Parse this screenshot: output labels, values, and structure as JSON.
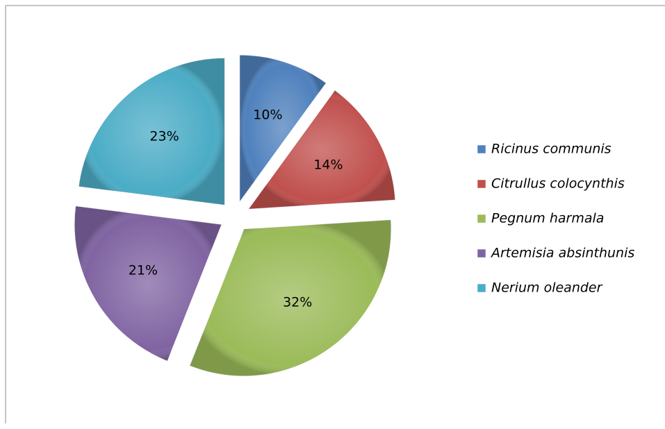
{
  "chart_data": {
    "type": "pie",
    "categories": [
      "Ricinus communis",
      "Citrullus colocynthis",
      "Pegnum harmala",
      "Artemisia absinthunis",
      "Nerium oleander"
    ],
    "values": [
      10,
      14,
      32,
      21,
      23
    ],
    "value_labels": [
      "10%",
      "14%",
      "32%",
      "21%",
      "23%"
    ],
    "colors": [
      "#4f81bd",
      "#c0504d",
      "#9bbb59",
      "#8064a2",
      "#4bacc6"
    ],
    "legend": "right"
  }
}
